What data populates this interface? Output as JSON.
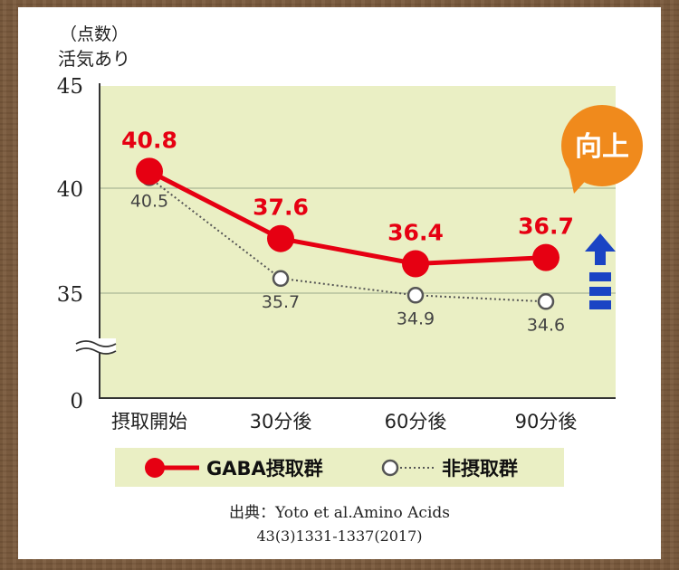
{
  "chart_data": {
    "type": "line",
    "ylabel_unit": "（点数）",
    "ylabel": "活気あり",
    "categories": [
      "摂取開始",
      "30分後",
      "60分後",
      "90分後"
    ],
    "yticks": [
      "45",
      "40",
      "35",
      "0"
    ],
    "y_axis_break": true,
    "ylim_visible": [
      32.5,
      45
    ],
    "series": [
      {
        "name": "GABA摂取群",
        "values": [
          40.8,
          37.6,
          36.4,
          36.7
        ],
        "labels": [
          "40.8",
          "37.6",
          "36.4",
          "36.7"
        ],
        "color": "#e60012",
        "line_style": "solid",
        "marker": "filled-circle"
      },
      {
        "name": "非摂取群",
        "values": [
          40.5,
          35.7,
          34.9,
          34.6
        ],
        "labels": [
          "40.5",
          "35.7",
          "34.9",
          "34.6"
        ],
        "color": "#555555",
        "line_style": "dotted",
        "marker": "open-circle"
      }
    ],
    "annotation": {
      "text": "向上",
      "color": "#f08a1c",
      "icon": "up-arrow-icon",
      "icon_color": "#1a44c4"
    },
    "grid": true,
    "plot_background": "#eaefc4",
    "legend_position": "bottom",
    "legend_background": "#eaefc4",
    "source_line1": "出典：Yoto et al.Amino Acids",
    "source_line2": "43(3)1331-1337(2017)"
  }
}
